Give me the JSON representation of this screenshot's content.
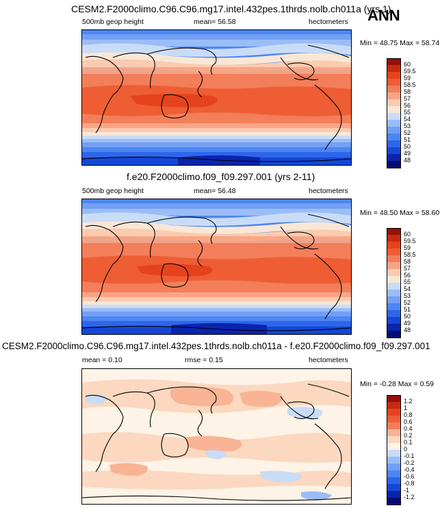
{
  "season": "ANN",
  "panels": [
    {
      "id": "top",
      "title": "CESM2.F2000climo.C96.C96.mg17.intel.432pes.1thrds.nolb.ch011a (yrs 1)",
      "variable_label": "500mb geop height",
      "mean_label": "mean=",
      "mean_value": "56.58",
      "units": "hectometers",
      "min_label": "Min =",
      "min_value": "48.75",
      "max_label": "Max =",
      "max_value": "58.74"
    },
    {
      "id": "middle",
      "title": "f.e20.F2000climo.f09_f09.297.001 (yrs 2-11)",
      "variable_label": "500mb geop height",
      "mean_label": "mean=",
      "mean_value": "56.48",
      "units": "hectometers",
      "min_label": "Min =",
      "min_value": "48.50",
      "max_label": "Max =",
      "max_value": "58.60"
    },
    {
      "id": "bottom",
      "title": "CESM2.F2000climo.C96.C96.mg17.intel.432pes.1thrds.nolb.ch011a - f.e20.F2000climo.f09_f09.297.001",
      "variable_label": "mean =",
      "mean_value": "0.10",
      "rmse_label": "rmse =",
      "rmse_value": "0.15",
      "units": "hectometers",
      "min_label": "Min =",
      "min_value": "-0.28",
      "max_label": "Max =",
      "max_value": "0.59"
    }
  ],
  "chart_data": [
    {
      "type": "heatmap",
      "title": "CESM2.F2000climo.C96.C96.mg17.intel.432pes.1thrds.nolb.ch011a (yrs 1)",
      "field": "500mb geopotential height",
      "units": "hectometers",
      "projection": "cylindrical equidistant, 0-360 longitude, Pacific-centered",
      "colorbar_levels": [
        "48",
        "49",
        "50",
        "51",
        "52",
        "53",
        "54",
        "55",
        "56",
        "57",
        "58",
        "58.5",
        "59",
        "59.5",
        "60"
      ],
      "colorbar_colors": [
        "#040d73",
        "#0a24ad",
        "#1447d6",
        "#2e66ea",
        "#4d86f2",
        "#739ff4",
        "#9bbdf7",
        "#c9dcf7",
        "#f9e7d6",
        "#fbcbb0",
        "#f8a585",
        "#f37e5a",
        "#ee5d34",
        "#e4431d",
        "#c72a12",
        "#941208"
      ],
      "min": 48.75,
      "max": 58.74,
      "mean": 56.58,
      "approx_zonal_profile": {
        "latitude": [
          90,
          75,
          60,
          45,
          30,
          15,
          0,
          -15,
          -30,
          -45,
          -60,
          -75,
          -90
        ],
        "value": [
          51.0,
          52.5,
          54.0,
          55.5,
          57.5,
          58.3,
          58.5,
          58.3,
          57.5,
          55.5,
          53.5,
          50.5,
          48.8
        ]
      }
    },
    {
      "type": "heatmap",
      "title": "f.e20.F2000climo.f09_f09.297.001 (yrs 2-11)",
      "field": "500mb geopotential height",
      "units": "hectometers",
      "colorbar_levels": [
        "48",
        "49",
        "50",
        "51",
        "52",
        "53",
        "54",
        "55",
        "56",
        "57",
        "58",
        "58.5",
        "59",
        "59.5",
        "60"
      ],
      "min": 48.5,
      "max": 58.6,
      "mean": 56.48,
      "approx_zonal_profile": {
        "latitude": [
          90,
          75,
          60,
          45,
          30,
          15,
          0,
          -15,
          -30,
          -45,
          -60,
          -75,
          -90
        ],
        "value": [
          50.9,
          52.4,
          53.9,
          55.4,
          57.4,
          58.2,
          58.4,
          58.2,
          57.4,
          55.4,
          53.4,
          50.3,
          48.6
        ]
      }
    },
    {
      "type": "heatmap",
      "title": "CESM2.F2000climo.C96.C96.mg17.intel.432pes.1thrds.nolb.ch011a - f.e20.F2000climo.f09_f09.297.001",
      "field": "500mb geopotential height difference",
      "units": "hectometers",
      "colorbar_levels": [
        "-1.2",
        "-1",
        "-0.8",
        "-0.6",
        "-0.4",
        "-0.2",
        "-0.1",
        "0",
        "0.1",
        "0.2",
        "0.4",
        "0.6",
        "0.8",
        "1",
        "1.2"
      ],
      "colorbar_colors": [
        "#040d73",
        "#0a24ad",
        "#1447d6",
        "#2e66ea",
        "#4d86f2",
        "#739ff4",
        "#9bbdf7",
        "#c9dcf7",
        "#fdf3e6",
        "#fbd8bf",
        "#f8b495",
        "#f37e5a",
        "#ee5d34",
        "#e4431d",
        "#c72a12",
        "#941208"
      ],
      "min": -0.28,
      "max": 0.59,
      "mean": 0.1,
      "rmse": 0.15
    }
  ]
}
